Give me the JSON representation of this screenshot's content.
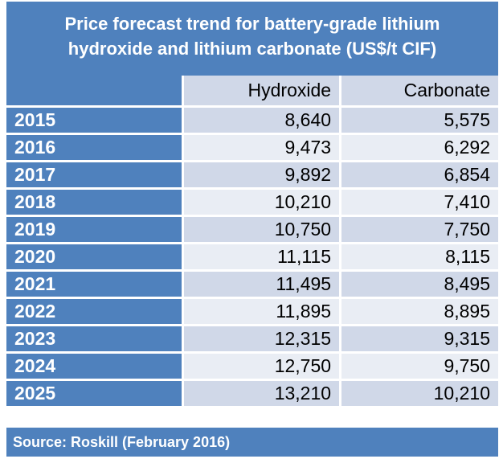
{
  "title_line1": "Price forecast trend for battery-grade lithium",
  "title_line2": "hydroxide and lithium carbonate (US$/t CIF)",
  "columns": [
    "Hydroxide",
    "Carbonate"
  ],
  "source": "Source: Roskill (February 2016)",
  "chart_data": {
    "type": "table",
    "title": "Price forecast trend for battery-grade lithium hydroxide and lithium carbonate (US$/t CIF)",
    "categories": [
      "2015",
      "2016",
      "2017",
      "2018",
      "2019",
      "2020",
      "2021",
      "2022",
      "2023",
      "2024",
      "2025"
    ],
    "series": [
      {
        "name": "Hydroxide",
        "values": [
          8640,
          9473,
          9892,
          10210,
          10750,
          11115,
          11495,
          11895,
          12315,
          12750,
          13210
        ]
      },
      {
        "name": "Carbonate",
        "values": [
          5575,
          6292,
          6854,
          7410,
          7750,
          8115,
          8495,
          8895,
          9315,
          9750,
          10210
        ]
      }
    ],
    "display": {
      "Hydroxide": [
        "8,640",
        "9,473",
        "9,892",
        "10,210",
        "10,750",
        "11,115",
        "11,495",
        "11,895",
        "12,315",
        "12,750",
        "13,210"
      ],
      "Carbonate": [
        "5,575",
        "6,292",
        "6,854",
        "7,410",
        "7,750",
        "8,115",
        "8,495",
        "8,895",
        "9,315",
        "9,750",
        "10,210"
      ]
    }
  }
}
